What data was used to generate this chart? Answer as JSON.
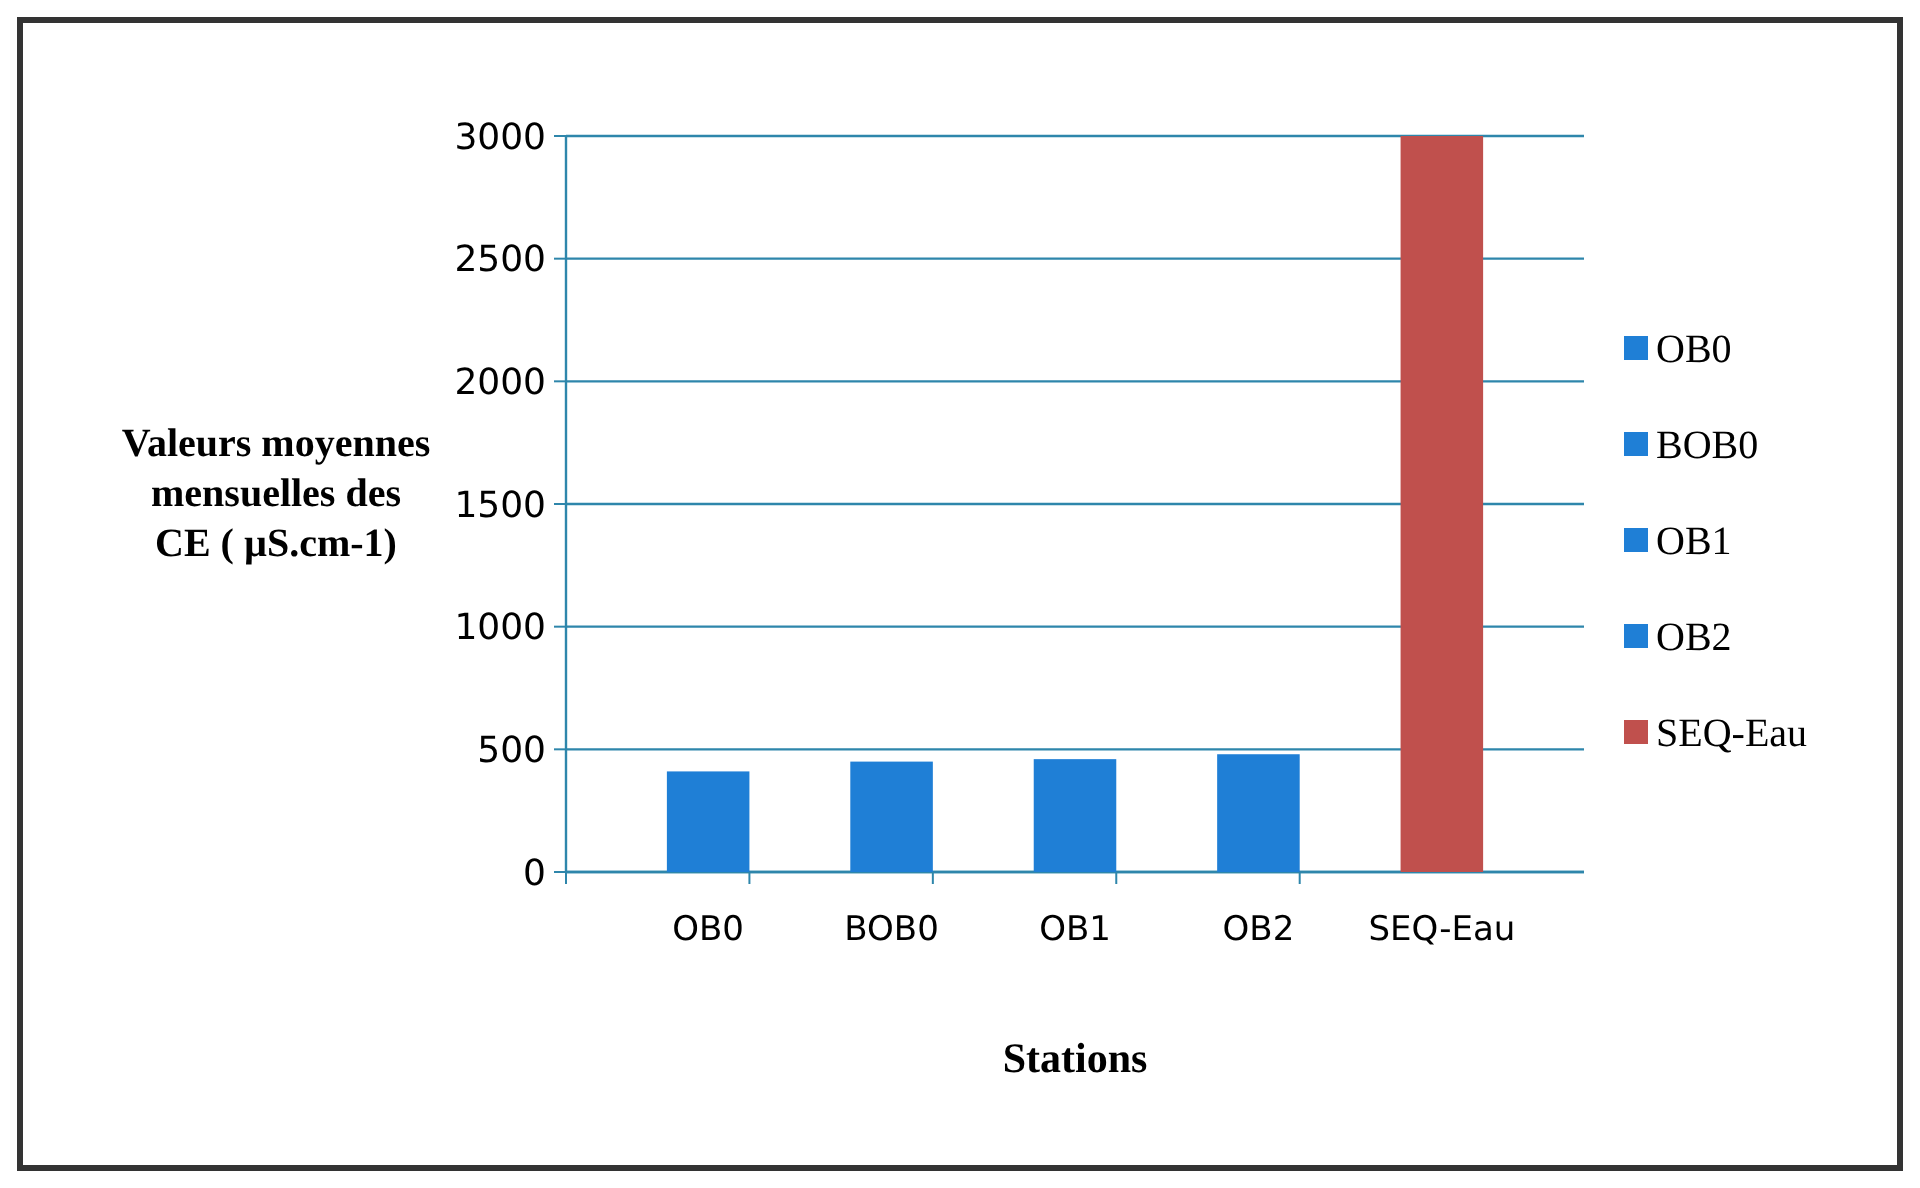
{
  "chart_data": {
    "type": "bar",
    "xlabel": "Stations",
    "ylabel": "Valeurs moyennes mensuelles des CE ( µS.cm-1)",
    "categories": [
      "OB0",
      "BOB0",
      "OB1",
      "OB2",
      "SEQ-Eau"
    ],
    "stacked": true,
    "series": [
      {
        "name": "OB0",
        "color": "#1f7fd6",
        "values": [
          410,
          null,
          null,
          null,
          null
        ]
      },
      {
        "name": "BOB0",
        "color": "#1f7fd6",
        "values": [
          null,
          450,
          null,
          null,
          null
        ]
      },
      {
        "name": "OB1",
        "color": "#1f7fd6",
        "values": [
          null,
          null,
          460,
          null,
          null
        ]
      },
      {
        "name": "OB2",
        "color": "#1f7fd6",
        "values": [
          null,
          null,
          null,
          480,
          null
        ]
      },
      {
        "name": "SEQ-Eau",
        "color": "#c0504d",
        "values": [
          null,
          null,
          null,
          null,
          3000
        ]
      }
    ],
    "ylim": [
      0,
      3000
    ],
    "yticks": [
      0,
      500,
      1000,
      1500,
      2000,
      2500,
      3000
    ],
    "grid": "y",
    "legend": "right"
  }
}
